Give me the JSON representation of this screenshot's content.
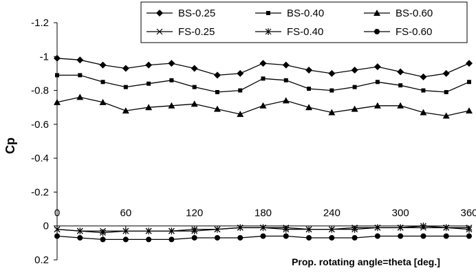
{
  "chart_data": {
    "type": "line",
    "xlabel": "Prop. rotating angle=theta [deg.]",
    "ylabel": "Cp",
    "xlim": [
      0,
      360
    ],
    "ylim": [
      -1.2,
      0.2
    ],
    "y_axis_inverted": true,
    "x_ticks": [
      0,
      60,
      120,
      180,
      240,
      300,
      360
    ],
    "y_ticks": [
      -1.2,
      -1,
      -0.8,
      -0.6,
      -0.4,
      -0.2,
      0,
      0.2
    ],
    "y_tick_labels": [
      "-1.2",
      "-1",
      "-0.8",
      "-0.6",
      "-0.4",
      "-0.2",
      "0",
      "0.2"
    ],
    "x_tick_labels": [
      "0",
      "60",
      "120",
      "180",
      "240",
      "300",
      "360"
    ],
    "legend_position": "top-right",
    "grid": false,
    "series": [
      {
        "name": "BS-0.25",
        "marker": "diamond",
        "x": [
          0,
          20,
          40,
          60,
          80,
          100,
          120,
          140,
          160,
          180,
          200,
          220,
          240,
          260,
          280,
          300,
          320,
          340,
          360
        ],
        "y": [
          -0.99,
          -0.98,
          -0.95,
          -0.93,
          -0.95,
          -0.96,
          -0.93,
          -0.89,
          -0.9,
          -0.96,
          -0.95,
          -0.92,
          -0.9,
          -0.92,
          -0.94,
          -0.91,
          -0.88,
          -0.9,
          -0.96
        ]
      },
      {
        "name": "BS-0.40",
        "marker": "square",
        "x": [
          0,
          20,
          40,
          60,
          80,
          100,
          120,
          140,
          160,
          180,
          200,
          220,
          240,
          260,
          280,
          300,
          320,
          340,
          360
        ],
        "y": [
          -0.89,
          -0.89,
          -0.85,
          -0.82,
          -0.84,
          -0.86,
          -0.82,
          -0.79,
          -0.8,
          -0.87,
          -0.86,
          -0.81,
          -0.8,
          -0.82,
          -0.85,
          -0.83,
          -0.8,
          -0.79,
          -0.85
        ]
      },
      {
        "name": "BS-0.60",
        "marker": "triangle",
        "x": [
          0,
          20,
          40,
          60,
          80,
          100,
          120,
          140,
          160,
          180,
          200,
          220,
          240,
          260,
          280,
          300,
          320,
          340,
          360
        ],
        "y": [
          -0.73,
          -0.76,
          -0.73,
          -0.68,
          -0.7,
          -0.71,
          -0.72,
          -0.69,
          -0.66,
          -0.71,
          -0.74,
          -0.7,
          -0.67,
          -0.69,
          -0.71,
          -0.71,
          -0.67,
          -0.65,
          -0.68
        ]
      },
      {
        "name": "FS-0.25",
        "marker": "x",
        "x": [
          0,
          20,
          40,
          60,
          80,
          100,
          120,
          140,
          160,
          180,
          200,
          220,
          240,
          260,
          280,
          300,
          320,
          340,
          360
        ],
        "y": [
          0.02,
          0.03,
          0.03,
          0.03,
          0.03,
          0.03,
          0.02,
          0.02,
          0.01,
          0.01,
          0.01,
          0.02,
          0.02,
          0.01,
          0.01,
          0.01,
          0.01,
          0.01,
          0.01
        ]
      },
      {
        "name": "FS-0.40",
        "marker": "asterisk",
        "x": [
          0,
          20,
          40,
          60,
          80,
          100,
          120,
          140,
          160,
          180,
          200,
          220,
          240,
          260,
          280,
          300,
          320,
          340,
          360
        ],
        "y": [
          0.02,
          0.03,
          0.04,
          0.03,
          0.03,
          0.03,
          0.03,
          0.02,
          0.01,
          0.01,
          0.02,
          0.02,
          0.02,
          0.02,
          0.01,
          0.01,
          0.0,
          0.01,
          0.02
        ]
      },
      {
        "name": "FS-0.60",
        "marker": "circle",
        "x": [
          0,
          20,
          40,
          60,
          80,
          100,
          120,
          140,
          160,
          180,
          200,
          220,
          240,
          260,
          280,
          300,
          320,
          340,
          360
        ],
        "y": [
          0.06,
          0.07,
          0.08,
          0.08,
          0.08,
          0.08,
          0.07,
          0.07,
          0.07,
          0.06,
          0.06,
          0.07,
          0.07,
          0.07,
          0.06,
          0.06,
          0.06,
          0.06,
          0.06
        ]
      }
    ]
  }
}
